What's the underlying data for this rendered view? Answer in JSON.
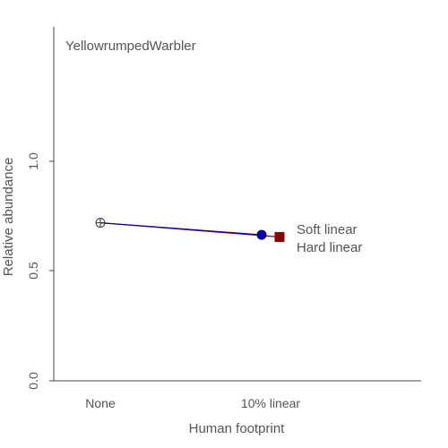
{
  "chart_data": {
    "type": "line",
    "title": "YellowrumpedWarbler",
    "xlabel": "Human footprint",
    "ylabel": "Relative abundance",
    "categories": [
      "None",
      "10% linear"
    ],
    "ylim": [
      0,
      1.5
    ],
    "yticks": [
      "0.0",
      "0.5",
      "1.0"
    ],
    "reference": {
      "category": "None",
      "value": 0.72
    },
    "series": [
      {
        "name": "Soft linear",
        "color": "#0000aa",
        "marker": "circle",
        "value": 0.665
      },
      {
        "name": "Hard linear",
        "color": "#8b0000",
        "marker": "square",
        "value": 0.655
      }
    ]
  }
}
